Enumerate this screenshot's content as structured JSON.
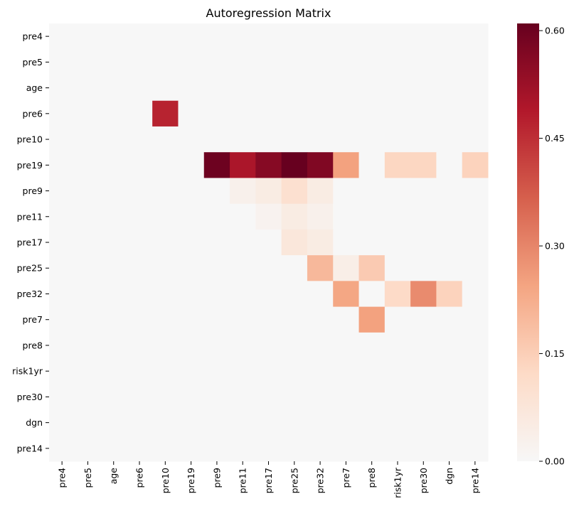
{
  "chart_data": {
    "type": "heatmap",
    "title": "Autoregression Matrix",
    "xlabel": "",
    "ylabel": "",
    "row_labels": [
      "pre4",
      "pre5",
      "age",
      "pre6",
      "pre10",
      "pre19",
      "pre9",
      "pre11",
      "pre17",
      "pre25",
      "pre32",
      "pre7",
      "pre8",
      "risk1yr",
      "pre30",
      "dgn",
      "pre14"
    ],
    "col_labels": [
      "pre4",
      "pre5",
      "age",
      "pre6",
      "pre10",
      "pre19",
      "pre9",
      "pre11",
      "pre17",
      "pre25",
      "pre32",
      "pre7",
      "pre8",
      "risk1yr",
      "pre30",
      "dgn",
      "pre14"
    ],
    "values": [
      [
        0,
        0,
        0,
        0,
        0,
        0,
        0,
        0,
        0,
        0,
        0,
        0,
        0,
        0,
        0,
        0,
        0
      ],
      [
        0,
        0,
        0,
        0,
        0,
        0,
        0,
        0,
        0,
        0,
        0,
        0,
        0,
        0,
        0,
        0,
        0
      ],
      [
        0,
        0,
        0,
        0,
        0,
        0,
        0,
        0,
        0,
        0,
        0,
        0,
        0,
        0,
        0,
        0,
        0
      ],
      [
        0,
        0,
        0,
        0,
        0.47,
        0,
        0,
        0,
        0,
        0,
        0,
        0,
        0,
        0,
        0,
        0,
        0
      ],
      [
        0,
        0,
        0,
        0,
        0,
        0,
        0,
        0,
        0,
        0,
        0,
        0,
        0,
        0,
        0,
        0,
        0
      ],
      [
        0,
        0,
        0,
        0,
        0,
        0,
        0.6,
        0.5,
        0.56,
        0.61,
        0.57,
        0.25,
        0,
        0.13,
        0.13,
        0,
        0.14
      ],
      [
        0,
        0,
        0,
        0,
        0,
        0,
        0,
        0.03,
        0.05,
        0.1,
        0.05,
        0,
        0,
        0,
        0,
        0,
        0
      ],
      [
        0,
        0,
        0,
        0,
        0,
        0,
        0,
        0,
        0.02,
        0.05,
        0.03,
        0,
        0,
        0,
        0,
        0,
        0
      ],
      [
        0,
        0,
        0,
        0,
        0,
        0,
        0,
        0,
        0,
        0.07,
        0.05,
        0,
        0,
        0,
        0,
        0,
        0
      ],
      [
        0,
        0,
        0,
        0,
        0,
        0,
        0,
        0,
        0,
        0,
        0.2,
        0.04,
        0.16,
        0,
        0,
        0,
        0
      ],
      [
        0,
        0,
        0,
        0,
        0,
        0,
        0,
        0,
        0,
        0,
        0,
        0.24,
        0,
        0.12,
        0.29,
        0.14,
        0
      ],
      [
        0,
        0,
        0,
        0,
        0,
        0,
        0,
        0,
        0,
        0,
        0,
        0,
        0.25,
        0,
        0,
        0,
        0
      ],
      [
        0,
        0,
        0,
        0,
        0,
        0,
        0,
        0,
        0,
        0,
        0,
        0,
        0,
        0,
        0,
        0,
        0
      ],
      [
        0,
        0,
        0,
        0,
        0,
        0,
        0,
        0,
        0,
        0,
        0,
        0,
        0,
        0,
        0,
        0,
        0
      ],
      [
        0,
        0,
        0,
        0,
        0,
        0,
        0,
        0,
        0,
        0,
        0,
        0,
        0,
        0,
        0,
        0,
        0
      ],
      [
        0,
        0,
        0,
        0,
        0,
        0,
        0,
        0,
        0,
        0,
        0,
        0,
        0,
        0,
        0,
        0,
        0
      ],
      [
        0,
        0,
        0,
        0,
        0,
        0,
        0,
        0,
        0,
        0,
        0,
        0,
        0,
        0,
        0,
        0,
        0
      ]
    ],
    "colorbar": {
      "colormap": "RdBu_r (upper half)",
      "vmin": 0,
      "vmax": 0.61,
      "ticks": [
        0.0,
        0.15,
        0.3,
        0.45,
        0.6
      ],
      "tick_labels": [
        "0.00",
        "0.15",
        "0.30",
        "0.45",
        "0.60"
      ],
      "colors": [
        "#f7f7f7",
        "#fddbc7",
        "#f4a582",
        "#d6604d",
        "#b2182b",
        "#67001f"
      ]
    },
    "grid": false,
    "legend": "colorbar-right"
  }
}
